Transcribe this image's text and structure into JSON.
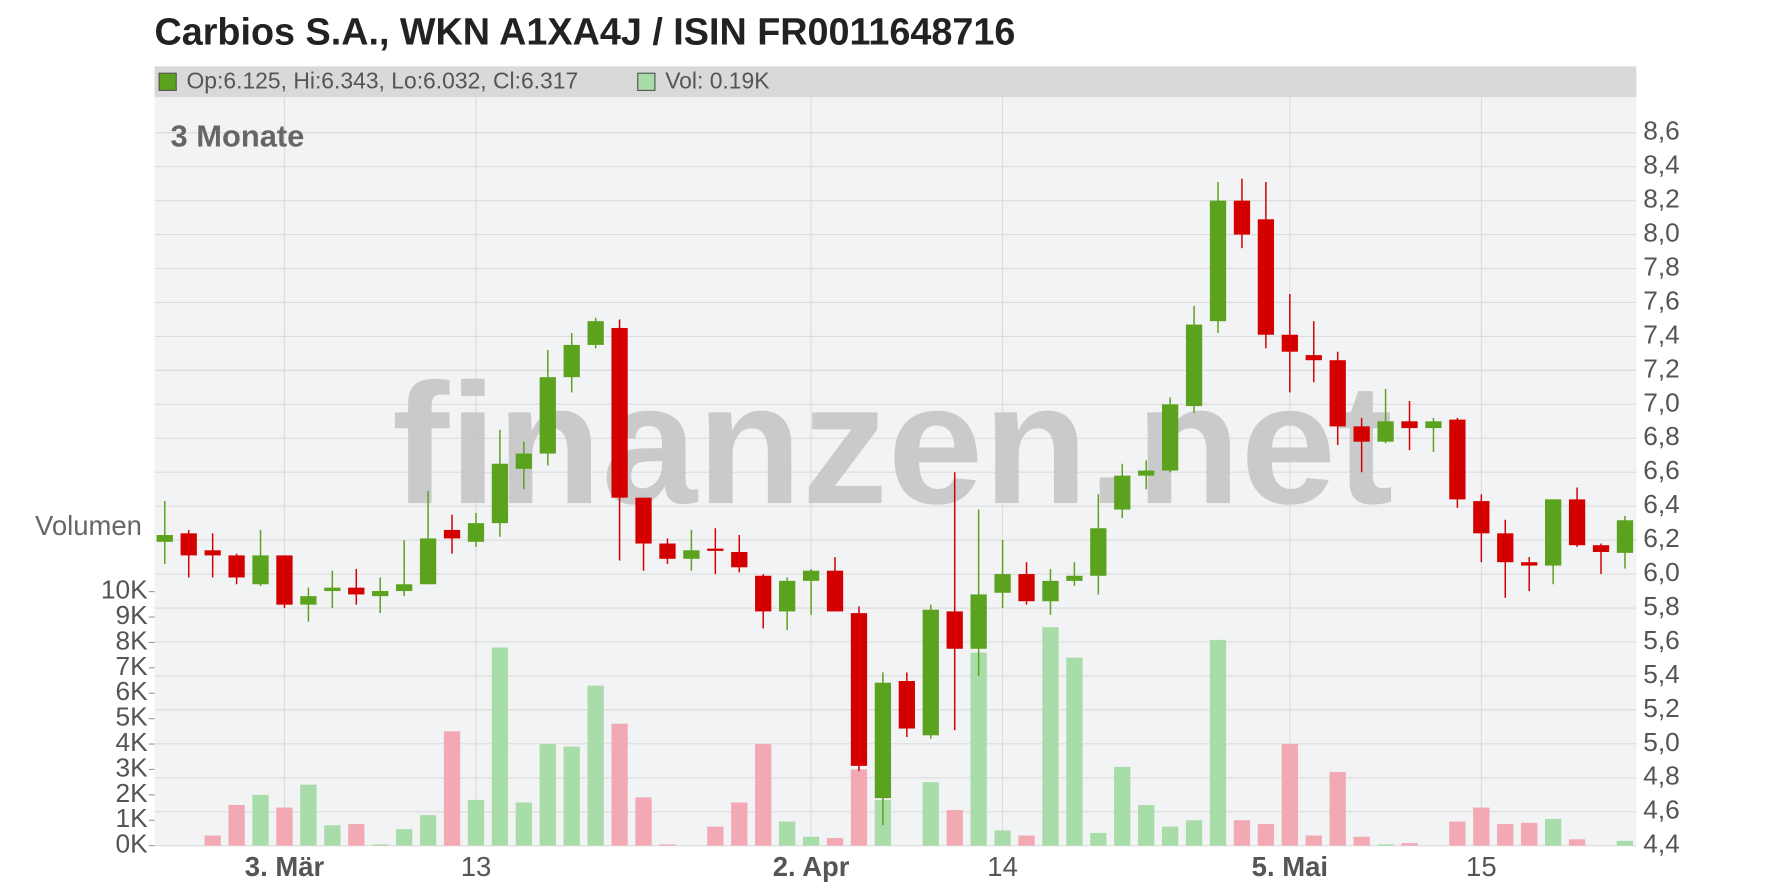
{
  "chart_data": {
    "type": "candlestick",
    "title": "Carbios S.A., WKN A1XA4J / ISIN FR0011648716",
    "subtitle": "3 Monate",
    "watermark": "finanzen.net",
    "volume_label": "Volumen",
    "legend": [
      {
        "text": "Op:6.125, Hi:6.343, Lo:6.032, Cl:6.317",
        "color": "#5ba21e"
      },
      {
        "text": "Vol: 0.19K",
        "color": "#a8dca8"
      }
    ],
    "up_color": "#5ba21e",
    "down_color": "#d40000",
    "volume_up_color": "#a8dca8",
    "volume_down_color": "#f2a9b3",
    "grid": true,
    "categories": [
      null,
      null,
      null,
      null,
      null,
      "3. Mär",
      null,
      null,
      null,
      null,
      null,
      null,
      null,
      "13",
      null,
      null,
      null,
      null,
      null,
      null,
      null,
      null,
      null,
      null,
      null,
      null,
      null,
      "2. Apr",
      null,
      null,
      null,
      null,
      null,
      null,
      null,
      "14",
      null,
      null,
      null,
      null,
      null,
      null,
      null,
      null,
      null,
      null,
      null,
      "5. Mai",
      null,
      null,
      null,
      null,
      null,
      null,
      null,
      "15",
      null,
      null,
      null,
      null,
      null,
      null
    ],
    "open": [
      6.19,
      6.24,
      6.14,
      6.11,
      5.94,
      6.11,
      5.82,
      5.9,
      5.92,
      5.87,
      5.9,
      5.94,
      6.26,
      6.19,
      6.3,
      6.62,
      6.71,
      7.16,
      7.35,
      7.45,
      6.45,
      6.18,
      6.09,
      6.15,
      6.13,
      5.99,
      5.78,
      5.96,
      6.02,
      5.77,
      4.68,
      5.37,
      5.05,
      5.78,
      5.56,
      5.89,
      6.0,
      5.84,
      5.96,
      5.99,
      6.38,
      6.58,
      6.61,
      6.99,
      7.49,
      8.2,
      8.09,
      7.41,
      7.29,
      7.26,
      6.87,
      6.78,
      6.9,
      6.86,
      6.91,
      6.43,
      6.24,
      6.07,
      6.05,
      6.44,
      6.17,
      6.125
    ],
    "high": [
      6.43,
      6.26,
      6.24,
      6.12,
      6.26,
      6.11,
      5.92,
      6.02,
      6.03,
      5.98,
      6.2,
      6.49,
      6.35,
      6.36,
      6.85,
      6.78,
      7.32,
      7.42,
      7.51,
      7.5,
      6.45,
      6.21,
      6.26,
      6.27,
      6.23,
      6.0,
      5.98,
      6.03,
      6.1,
      5.81,
      5.42,
      5.42,
      5.82,
      6.6,
      6.38,
      6.2,
      6.07,
      6.03,
      6.07,
      6.47,
      6.65,
      6.67,
      7.04,
      7.58,
      8.31,
      8.33,
      8.31,
      7.65,
      7.49,
      7.31,
      6.92,
      7.09,
      7.02,
      6.92,
      6.92,
      6.47,
      6.32,
      6.1,
      6.44,
      6.51,
      6.18,
      6.343
    ],
    "low": [
      6.06,
      5.98,
      5.98,
      5.94,
      5.93,
      5.8,
      5.72,
      5.8,
      5.82,
      5.77,
      5.87,
      5.94,
      6.12,
      6.16,
      6.22,
      6.5,
      6.64,
      7.07,
      7.33,
      6.08,
      6.02,
      6.06,
      6.02,
      6.0,
      6.01,
      5.68,
      5.67,
      5.76,
      5.78,
      4.84,
      4.52,
      5.04,
      5.03,
      5.08,
      5.4,
      5.8,
      5.82,
      5.76,
      5.93,
      5.88,
      6.33,
      6.5,
      6.6,
      6.95,
      7.42,
      7.92,
      7.33,
      7.07,
      7.13,
      6.76,
      6.6,
      6.77,
      6.73,
      6.72,
      6.39,
      6.07,
      5.86,
      5.9,
      5.94,
      6.16,
      6.0,
      6.032
    ],
    "close": [
      6.23,
      6.11,
      6.11,
      5.98,
      6.11,
      5.82,
      5.87,
      5.92,
      5.88,
      5.9,
      5.94,
      6.21,
      6.21,
      6.3,
      6.65,
      6.71,
      7.16,
      7.35,
      7.49,
      6.45,
      6.18,
      6.09,
      6.14,
      6.14,
      6.04,
      5.78,
      5.96,
      6.02,
      5.78,
      4.87,
      5.36,
      5.09,
      5.79,
      5.56,
      5.88,
      6.0,
      5.84,
      5.96,
      5.99,
      6.27,
      6.58,
      6.61,
      7.0,
      7.47,
      8.2,
      8.0,
      7.41,
      7.31,
      7.26,
      6.87,
      6.78,
      6.9,
      6.86,
      6.9,
      6.44,
      6.24,
      6.07,
      6.05,
      6.44,
      6.17,
      6.13,
      6.317
    ],
    "volume": [
      0,
      0,
      400,
      1600,
      2000,
      1500,
      2400,
      800,
      850,
      50,
      650,
      1200,
      4500,
      1800,
      7800,
      1700,
      4000,
      3900,
      6300,
      4800,
      1900,
      50,
      0,
      750,
      1700,
      4000,
      950,
      350,
      300,
      3000,
      1800,
      0,
      2500,
      1400,
      7600,
      600,
      400,
      8600,
      7400,
      500,
      3100,
      1600,
      750,
      1000,
      8100,
      1000,
      850,
      4000,
      400,
      2900,
      350,
      50,
      100,
      0,
      950,
      1500,
      850,
      900,
      1050,
      250,
      0,
      190
    ],
    "ylim": [
      4.4,
      8.6
    ],
    "yticks": [
      {
        "value": 4.4,
        "label": "4,4"
      },
      {
        "value": 4.6,
        "label": "4,6"
      },
      {
        "value": 4.8,
        "label": "4,8"
      },
      {
        "value": 5.0,
        "label": "5,0"
      },
      {
        "value": 5.2,
        "label": "5,2"
      },
      {
        "value": 5.4,
        "label": "5,4"
      },
      {
        "value": 5.6,
        "label": "5,6"
      },
      {
        "value": 5.8,
        "label": "5,8"
      },
      {
        "value": 6.0,
        "label": "6,0"
      },
      {
        "value": 6.2,
        "label": "6,2"
      },
      {
        "value": 6.4,
        "label": "6,4"
      },
      {
        "value": 6.6,
        "label": "6,6"
      },
      {
        "value": 6.8,
        "label": "6,8"
      },
      {
        "value": 7.0,
        "label": "7,0"
      },
      {
        "value": 7.2,
        "label": "7,2"
      },
      {
        "value": 7.4,
        "label": "7,4"
      },
      {
        "value": 7.6,
        "label": "7,6"
      },
      {
        "value": 7.8,
        "label": "7,8"
      },
      {
        "value": 8.0,
        "label": "8,0"
      },
      {
        "value": 8.2,
        "label": "8,2"
      },
      {
        "value": 8.4,
        "label": "8,4"
      },
      {
        "value": 8.6,
        "label": "8,6"
      }
    ],
    "volume_lim": [
      0,
      10000
    ],
    "volume_ticks": [
      {
        "value": 0,
        "label": "0K"
      },
      {
        "value": 1000,
        "label": "1K"
      },
      {
        "value": 2000,
        "label": "2K"
      },
      {
        "value": 3000,
        "label": "3K"
      },
      {
        "value": 4000,
        "label": "4K"
      },
      {
        "value": 5000,
        "label": "5K"
      },
      {
        "value": 6000,
        "label": "6K"
      },
      {
        "value": 7000,
        "label": "7K"
      },
      {
        "value": 8000,
        "label": "8K"
      },
      {
        "value": 9000,
        "label": "9K"
      },
      {
        "value": 10000,
        "label": "10K"
      }
    ]
  }
}
